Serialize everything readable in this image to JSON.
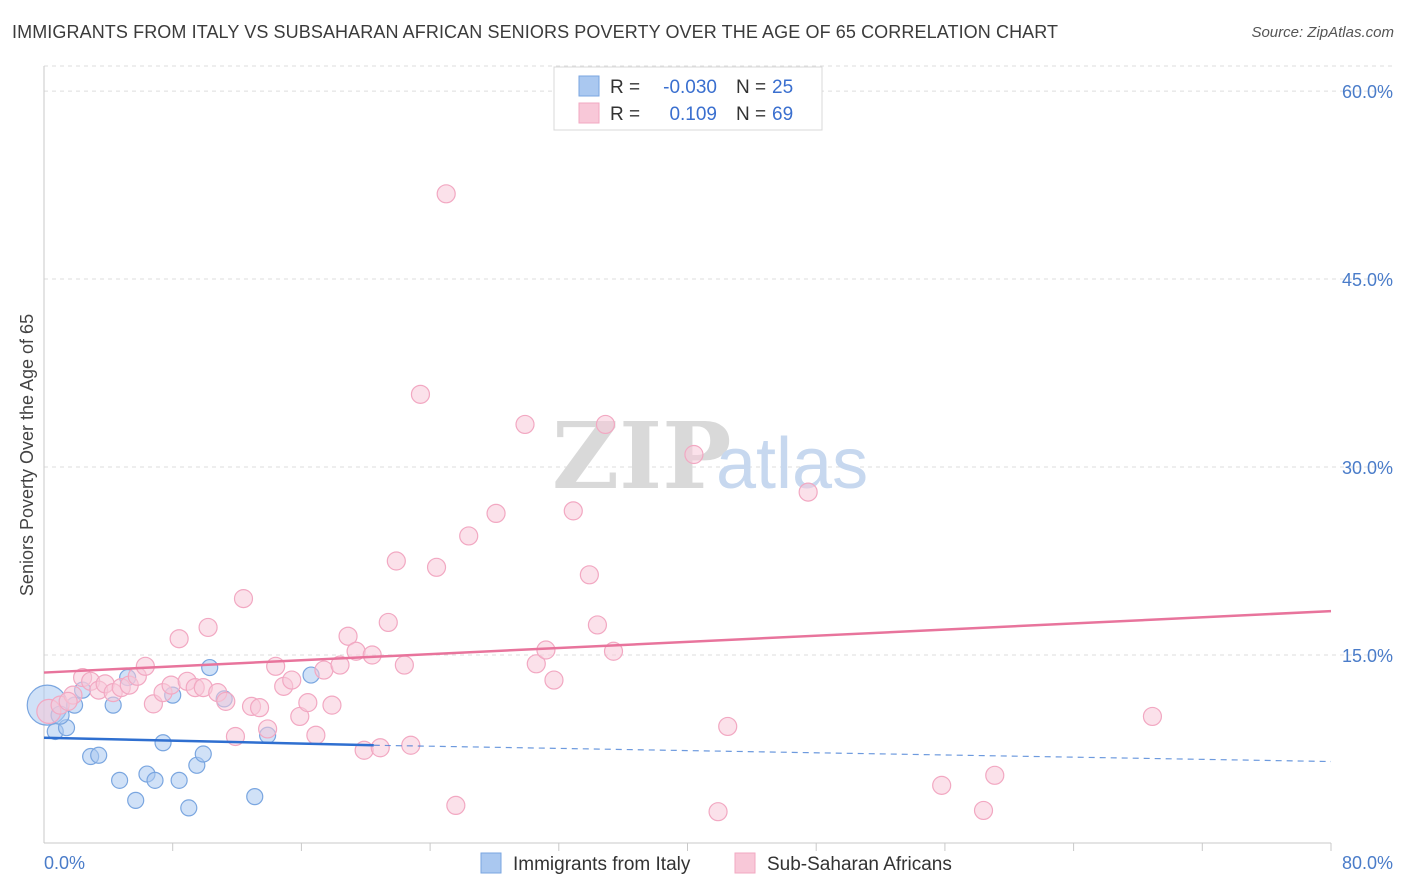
{
  "title": "IMMIGRANTS FROM ITALY VS SUBSAHARAN AFRICAN SENIORS POVERTY OVER THE AGE OF 65 CORRELATION CHART",
  "source": "Source: ZipAtlas.com",
  "watermark": {
    "zip": "ZIP",
    "atlas": "atlas"
  },
  "legend_top": {
    "rows": [
      {
        "r_label": "R =",
        "r_value": "-0.030",
        "n_label": "N =",
        "n_value": "25"
      },
      {
        "r_label": "R =",
        "r_value": "0.109",
        "n_label": "N =",
        "n_value": "69"
      }
    ]
  },
  "chart_data": {
    "type": "scatter",
    "title": "IMMIGRANTS FROM ITALY VS SUBSAHARAN AFRICAN SENIORS POVERTY OVER THE AGE OF 65 CORRELATION CHART",
    "xlabel": "",
    "ylabel": "Seniors Poverty Over the Age of 65",
    "xlim": [
      0,
      80
    ],
    "ylim": [
      0,
      62
    ],
    "x_tick_labels": [
      "0.0%",
      "80.0%"
    ],
    "y_ticks": [
      15,
      30,
      45,
      60
    ],
    "y_tick_labels": [
      "15.0%",
      "30.0%",
      "45.0%",
      "60.0%"
    ],
    "grid": true,
    "legend_position": "bottom-center",
    "series": [
      {
        "name": "Immigrants from Italy",
        "color": "#7aa6e0",
        "fill": "#aac8f0",
        "line_color": "#2f6fd0",
        "trend": {
          "x0": 0,
          "y0": 8.4,
          "x1": 20.5,
          "y1": 7.8,
          "x_extend": 80,
          "y_extend": 6.5
        },
        "points": [
          [
            0.2,
            11.0,
            20
          ],
          [
            0.7,
            8.9,
            8
          ],
          [
            1.4,
            9.2,
            8
          ],
          [
            1.9,
            11.0,
            8
          ],
          [
            2.4,
            12.2,
            8
          ],
          [
            2.9,
            6.9,
            8
          ],
          [
            3.4,
            7.0,
            8
          ],
          [
            4.3,
            11.0,
            8
          ],
          [
            5.2,
            13.2,
            8
          ],
          [
            4.7,
            5.0,
            8
          ],
          [
            5.7,
            3.4,
            8
          ],
          [
            6.4,
            5.5,
            8
          ],
          [
            6.9,
            5.0,
            8
          ],
          [
            7.4,
            8.0,
            8
          ],
          [
            8.0,
            11.8,
            8
          ],
          [
            8.4,
            5.0,
            8
          ],
          [
            9.0,
            2.8,
            8
          ],
          [
            9.5,
            6.2,
            8
          ],
          [
            9.9,
            7.1,
            8
          ],
          [
            10.3,
            14.0,
            8
          ],
          [
            11.2,
            11.5,
            8
          ],
          [
            13.1,
            3.7,
            8
          ],
          [
            13.9,
            8.6,
            8
          ],
          [
            16.6,
            13.4,
            8
          ],
          [
            1.0,
            10.2,
            9
          ]
        ]
      },
      {
        "name": "Sub-Saharan Africans",
        "color": "#f2a8c2",
        "fill": "#f8c8d8",
        "line_color": "#e8749c",
        "trend": {
          "x0": 0,
          "y0": 13.6,
          "x1": 80,
          "y1": 18.5
        },
        "points": [
          [
            0.3,
            10.5,
            12
          ],
          [
            1.0,
            11.0,
            9
          ],
          [
            1.8,
            11.8,
            9
          ],
          [
            2.4,
            13.2,
            9
          ],
          [
            2.9,
            12.9,
            9
          ],
          [
            3.4,
            12.2,
            9
          ],
          [
            3.8,
            12.7,
            9
          ],
          [
            4.3,
            12.0,
            9
          ],
          [
            4.8,
            12.4,
            9
          ],
          [
            5.3,
            12.6,
            9
          ],
          [
            5.8,
            13.3,
            9
          ],
          [
            6.3,
            14.1,
            9
          ],
          [
            6.8,
            11.1,
            9
          ],
          [
            7.4,
            12.0,
            9
          ],
          [
            7.9,
            12.6,
            9
          ],
          [
            8.4,
            16.3,
            9
          ],
          [
            8.9,
            12.9,
            9
          ],
          [
            9.4,
            12.4,
            9
          ],
          [
            9.9,
            12.4,
            9
          ],
          [
            10.2,
            17.2,
            9
          ],
          [
            10.8,
            12.0,
            9
          ],
          [
            11.3,
            11.3,
            9
          ],
          [
            11.9,
            8.5,
            9
          ],
          [
            12.4,
            19.5,
            9
          ],
          [
            12.9,
            10.9,
            9
          ],
          [
            13.4,
            10.8,
            9
          ],
          [
            13.9,
            9.1,
            9
          ],
          [
            14.4,
            14.1,
            9
          ],
          [
            14.9,
            12.5,
            9
          ],
          [
            15.4,
            13.0,
            9
          ],
          [
            15.9,
            10.1,
            9
          ],
          [
            16.4,
            11.2,
            9
          ],
          [
            16.9,
            8.6,
            9
          ],
          [
            17.4,
            13.8,
            9
          ],
          [
            17.9,
            11.0,
            9
          ],
          [
            18.4,
            14.2,
            9
          ],
          [
            18.9,
            16.5,
            9
          ],
          [
            19.4,
            15.3,
            9
          ],
          [
            19.9,
            7.4,
            9
          ],
          [
            20.4,
            15.0,
            9
          ],
          [
            20.9,
            7.6,
            9
          ],
          [
            21.4,
            17.6,
            9
          ],
          [
            21.9,
            22.5,
            9
          ],
          [
            22.4,
            14.2,
            9
          ],
          [
            22.8,
            7.8,
            9
          ],
          [
            23.4,
            35.8,
            9
          ],
          [
            24.4,
            22.0,
            9
          ],
          [
            25.0,
            51.8,
            9
          ],
          [
            25.6,
            3.0,
            9
          ],
          [
            26.4,
            24.5,
            9
          ],
          [
            28.1,
            26.3,
            9
          ],
          [
            29.9,
            33.4,
            9
          ],
          [
            30.6,
            14.3,
            9
          ],
          [
            31.2,
            15.4,
            9
          ],
          [
            31.7,
            13.0,
            9
          ],
          [
            32.9,
            26.5,
            9
          ],
          [
            33.9,
            21.4,
            9
          ],
          [
            34.4,
            17.4,
            9
          ],
          [
            34.9,
            33.4,
            9
          ],
          [
            35.4,
            15.3,
            9
          ],
          [
            40.4,
            31.0,
            9
          ],
          [
            41.9,
            2.5,
            9
          ],
          [
            42.5,
            9.3,
            9
          ],
          [
            47.5,
            28.0,
            9
          ],
          [
            55.8,
            4.6,
            9
          ],
          [
            58.4,
            2.6,
            9
          ],
          [
            59.1,
            5.4,
            9
          ],
          [
            68.9,
            10.1,
            9
          ],
          [
            1.5,
            11.3,
            9
          ]
        ]
      }
    ]
  }
}
